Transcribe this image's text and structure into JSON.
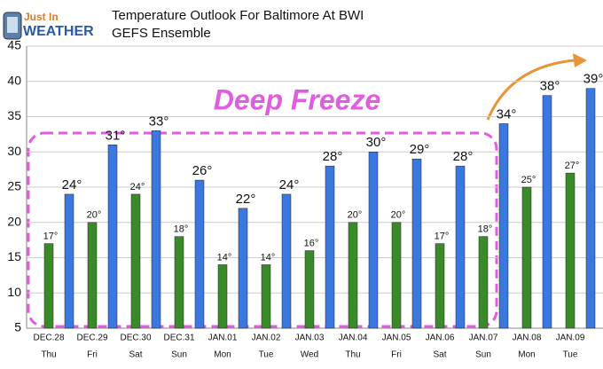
{
  "chart_data": {
    "type": "bar",
    "title": "Temperature Outlook For Baltimore At BWI",
    "subtitle": "GEFS Ensemble",
    "logo": [
      "Just In",
      "WEATHER"
    ],
    "annotation": "Deep Freeze",
    "categories": [
      "DEC.28",
      "DEC.29",
      "DEC.30",
      "DEC.31",
      "JAN.01",
      "JAN.02",
      "JAN.03",
      "JAN.04",
      "JAN.05",
      "JAN.06",
      "JAN.07",
      "JAN.08",
      "JAN.09"
    ],
    "days": [
      "Thu",
      "Fri",
      "Sat",
      "Sun",
      "Mon",
      "Tue",
      "Wed",
      "Thu",
      "Fri",
      "Sat",
      "Sun",
      "Mon",
      "Tue"
    ],
    "series": [
      {
        "color": "#3a8a2a",
        "values": [
          17,
          20,
          24,
          18,
          14,
          14,
          16,
          20,
          20,
          17,
          18,
          25,
          27
        ],
        "value_labels": [
          "17°",
          "20°",
          "24°",
          "18°",
          "14°",
          "14°",
          "16°",
          "20°",
          "20°",
          "17°",
          "18°",
          "25°",
          "27°"
        ]
      },
      {
        "color": "#3a78e0",
        "values": [
          24,
          31,
          33,
          26,
          22,
          24,
          28,
          30,
          29,
          28,
          34,
          38,
          39
        ],
        "value_labels": [
          "24°",
          "31°",
          "33°",
          "26°",
          "22°",
          "24°",
          "28°",
          "30°",
          "29°",
          "28°",
          "34°",
          "38°",
          "39°"
        ]
      }
    ],
    "ylim": [
      5,
      45
    ],
    "yticks": [
      5,
      10,
      15,
      20,
      25,
      30,
      35,
      40,
      45
    ],
    "grid": true
  }
}
